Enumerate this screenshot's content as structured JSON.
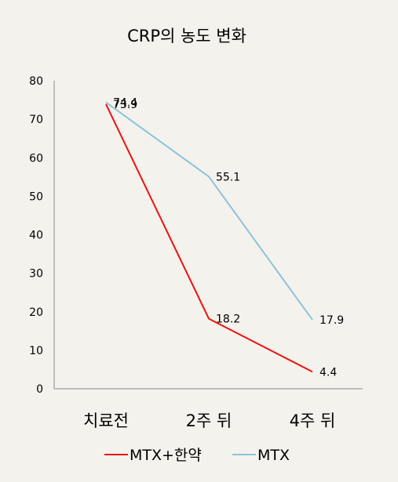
{
  "chart_data": {
    "type": "line",
    "title": "CRP의 농도 변화",
    "categories": [
      "치료전",
      "2주 뒤",
      "4주 뒤"
    ],
    "ylim": [
      0,
      80
    ],
    "yticks": [
      0,
      10,
      20,
      30,
      40,
      50,
      60,
      70,
      80
    ],
    "grid": false,
    "legend_position": "bottom",
    "series": [
      {
        "name": "MTX+한약",
        "values": [
          73.9,
          18.2,
          4.4
        ],
        "labels": [
          "73.9",
          "18.2",
          "4.4"
        ],
        "color": "#ee1111"
      },
      {
        "name": "MTX",
        "values": [
          74.4,
          55.1,
          17.9
        ],
        "labels": [
          "74.4",
          "55.1",
          "17.9"
        ],
        "color": "#8cc3dc"
      }
    ],
    "axis_color": "#8a8a8a"
  }
}
